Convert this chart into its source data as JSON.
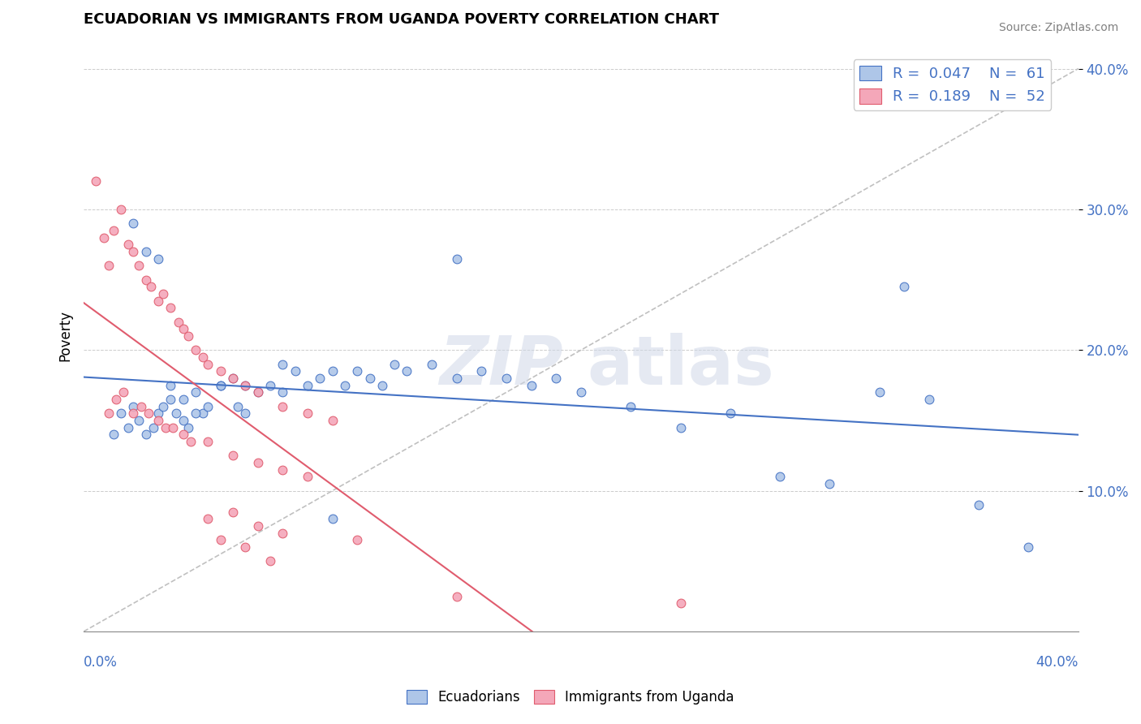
{
  "title": "ECUADORIAN VS IMMIGRANTS FROM UGANDA POVERTY CORRELATION CHART",
  "source": "Source: ZipAtlas.com",
  "ylabel": "Poverty",
  "x_range": [
    0.0,
    0.4
  ],
  "y_range": [
    0.0,
    0.42
  ],
  "blue_color": "#AEC6E8",
  "pink_color": "#F4A7B9",
  "blue_line_color": "#4472C4",
  "pink_line_color": "#E05C6E",
  "diag_line_color": "#C0C0C0",
  "ecuadorians_x": [
    0.012,
    0.015,
    0.018,
    0.02,
    0.022,
    0.025,
    0.028,
    0.03,
    0.032,
    0.035,
    0.037,
    0.04,
    0.042,
    0.045,
    0.048,
    0.05,
    0.055,
    0.06,
    0.062,
    0.065,
    0.07,
    0.075,
    0.08,
    0.085,
    0.09,
    0.095,
    0.1,
    0.105,
    0.11,
    0.115,
    0.12,
    0.125,
    0.13,
    0.14,
    0.15,
    0.16,
    0.17,
    0.18,
    0.19,
    0.2,
    0.22,
    0.24,
    0.26,
    0.28,
    0.3,
    0.32,
    0.34,
    0.36,
    0.38,
    0.02,
    0.025,
    0.03,
    0.035,
    0.04,
    0.045,
    0.055,
    0.065,
    0.08,
    0.1,
    0.15,
    0.33
  ],
  "ecuadorians_y": [
    0.14,
    0.155,
    0.145,
    0.16,
    0.15,
    0.14,
    0.145,
    0.155,
    0.16,
    0.165,
    0.155,
    0.15,
    0.145,
    0.17,
    0.155,
    0.16,
    0.175,
    0.18,
    0.16,
    0.175,
    0.17,
    0.175,
    0.19,
    0.185,
    0.175,
    0.18,
    0.185,
    0.175,
    0.185,
    0.18,
    0.175,
    0.19,
    0.185,
    0.19,
    0.18,
    0.185,
    0.18,
    0.175,
    0.18,
    0.17,
    0.16,
    0.145,
    0.155,
    0.11,
    0.105,
    0.17,
    0.165,
    0.09,
    0.06,
    0.29,
    0.27,
    0.265,
    0.175,
    0.165,
    0.155,
    0.175,
    0.155,
    0.17,
    0.08,
    0.265,
    0.245
  ],
  "uganda_x": [
    0.005,
    0.008,
    0.01,
    0.012,
    0.015,
    0.018,
    0.02,
    0.022,
    0.025,
    0.027,
    0.03,
    0.032,
    0.035,
    0.038,
    0.04,
    0.042,
    0.045,
    0.048,
    0.05,
    0.055,
    0.06,
    0.065,
    0.07,
    0.08,
    0.09,
    0.1,
    0.01,
    0.013,
    0.016,
    0.02,
    0.023,
    0.026,
    0.03,
    0.033,
    0.036,
    0.04,
    0.043,
    0.05,
    0.06,
    0.07,
    0.08,
    0.09,
    0.05,
    0.06,
    0.07,
    0.08,
    0.11,
    0.15,
    0.24,
    0.055,
    0.065,
    0.075
  ],
  "uganda_y": [
    0.32,
    0.28,
    0.26,
    0.285,
    0.3,
    0.275,
    0.27,
    0.26,
    0.25,
    0.245,
    0.235,
    0.24,
    0.23,
    0.22,
    0.215,
    0.21,
    0.2,
    0.195,
    0.19,
    0.185,
    0.18,
    0.175,
    0.17,
    0.16,
    0.155,
    0.15,
    0.155,
    0.165,
    0.17,
    0.155,
    0.16,
    0.155,
    0.15,
    0.145,
    0.145,
    0.14,
    0.135,
    0.135,
    0.125,
    0.12,
    0.115,
    0.11,
    0.08,
    0.085,
    0.075,
    0.07,
    0.065,
    0.025,
    0.02,
    0.065,
    0.06,
    0.05
  ]
}
